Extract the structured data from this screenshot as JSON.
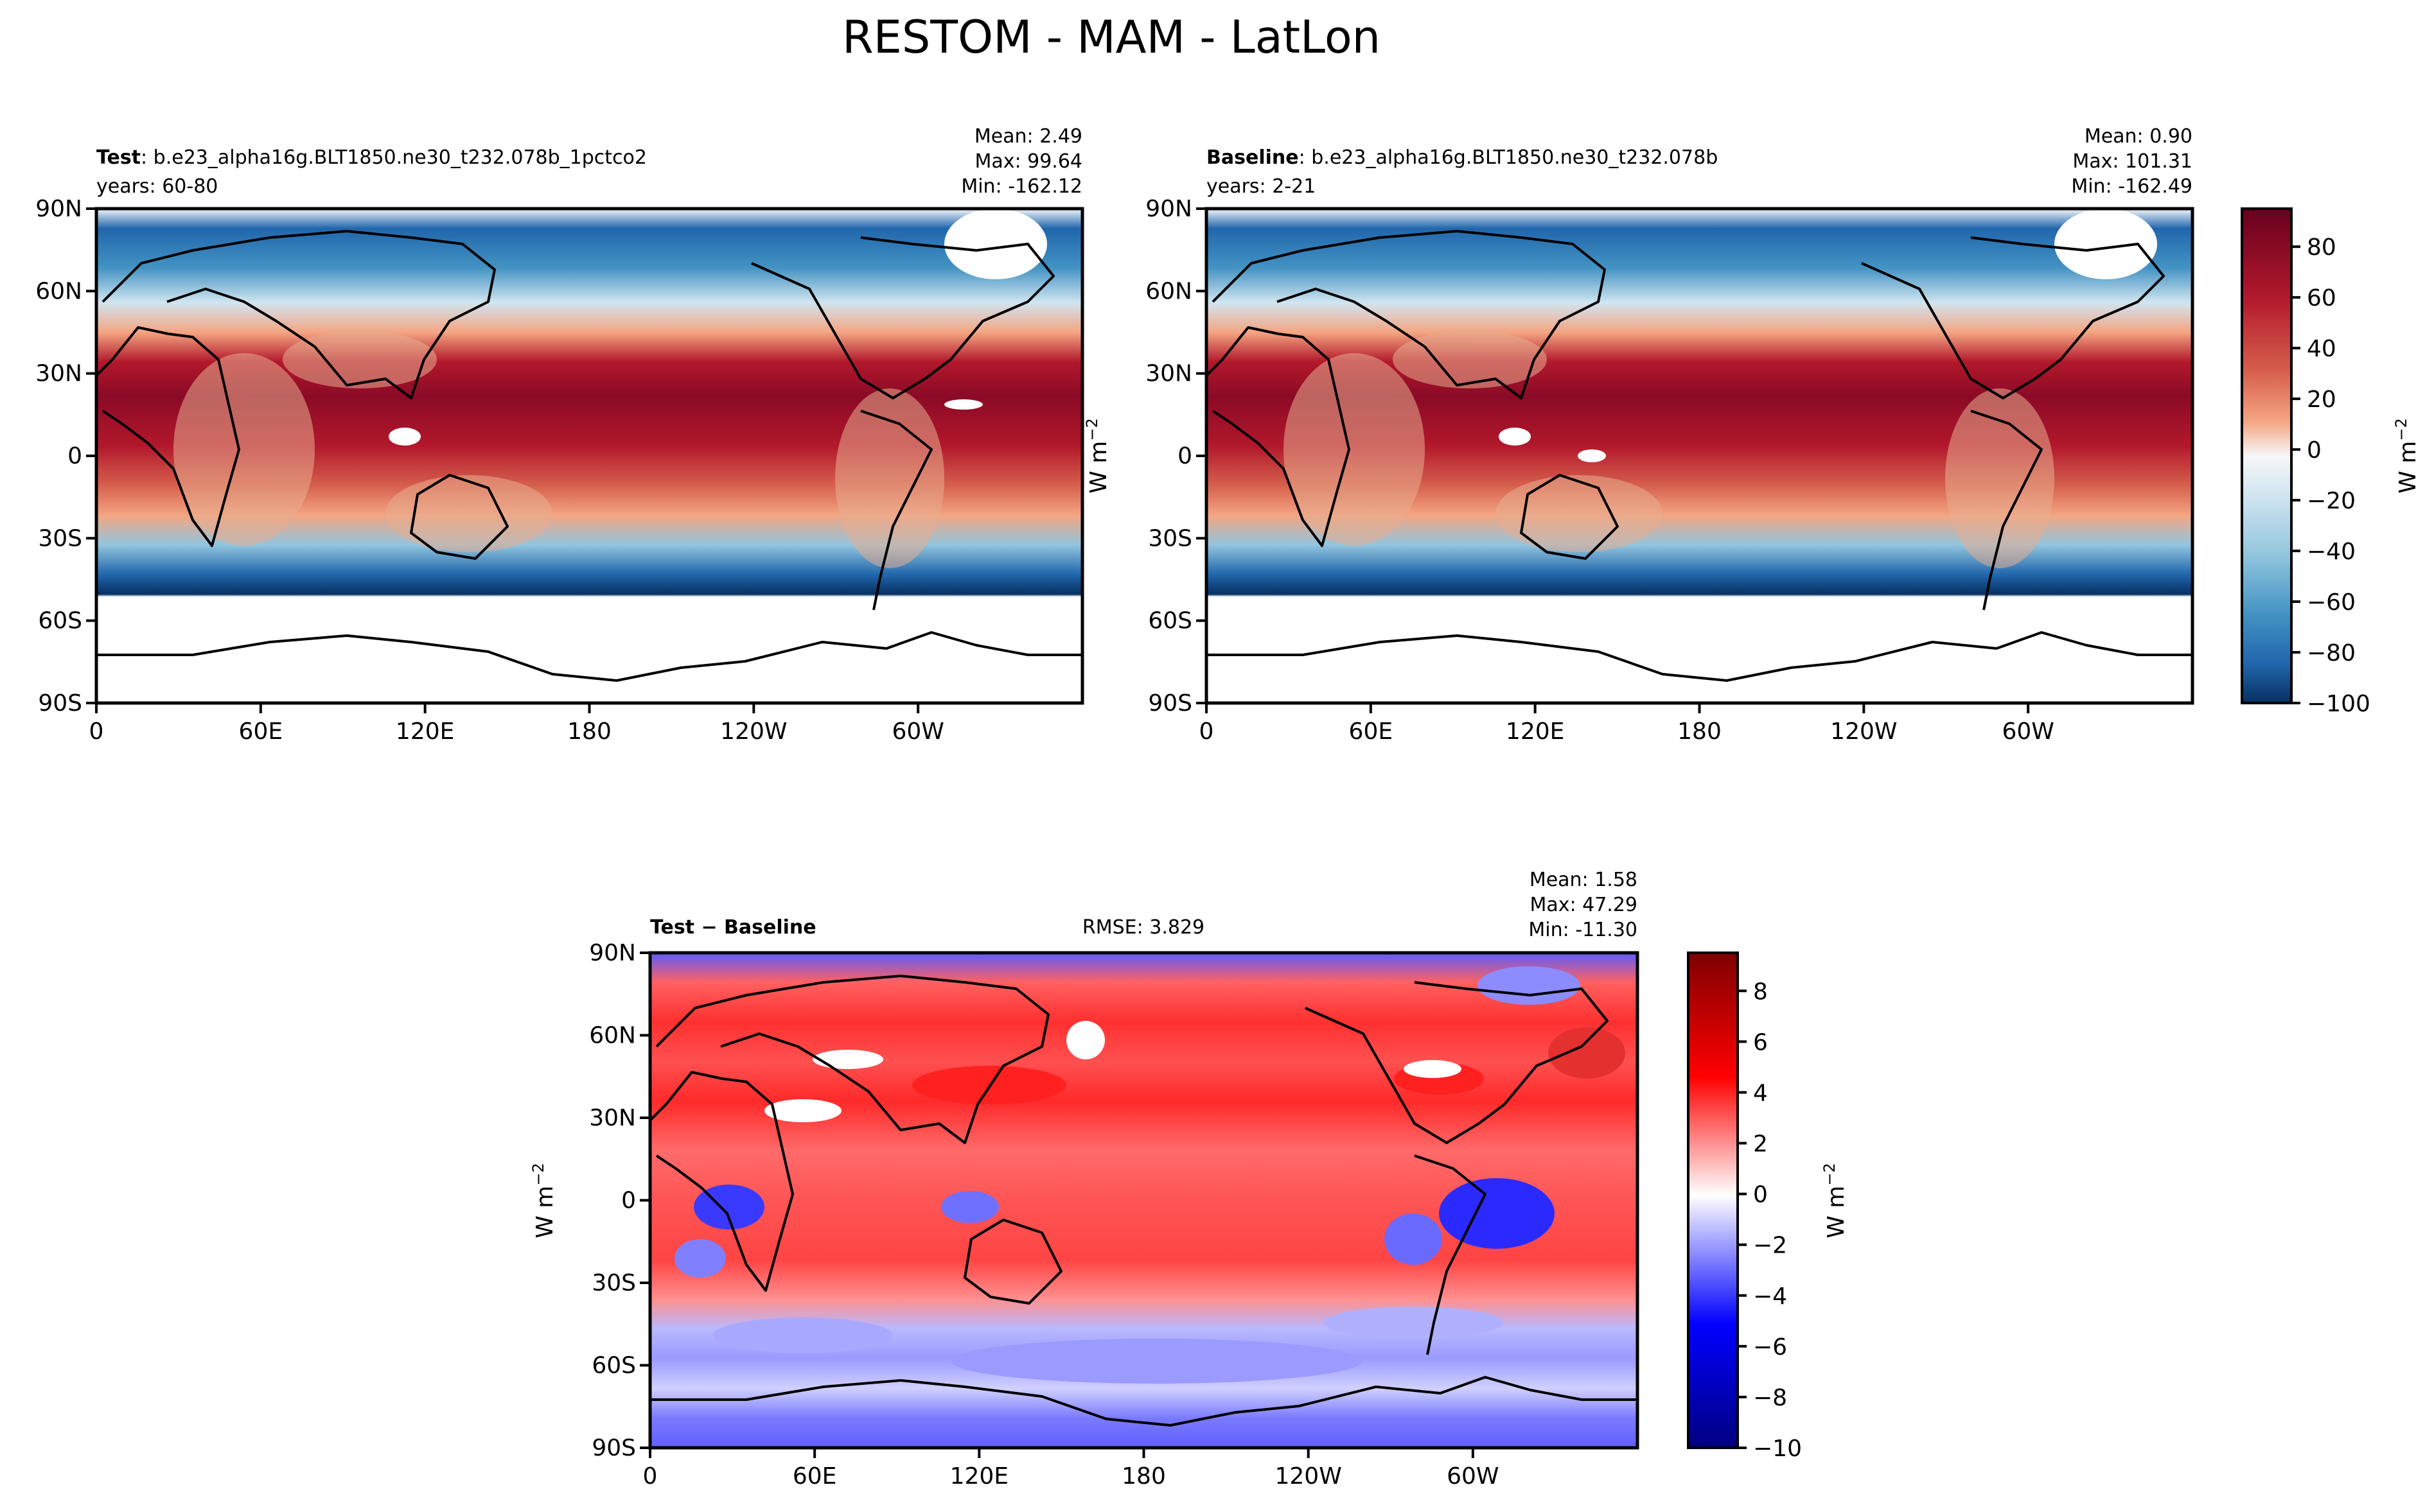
{
  "figure": {
    "title": "RESTOM - MAM - LatLon"
  },
  "panels": {
    "test": {
      "label_bold": "Test",
      "label_rest": ": b.e23_alpha16g.BLT1850.ne30_t232.078b_1pctco2",
      "years": "years: 60-80",
      "mean": "Mean:  2.49",
      "max": "Max: 99.64",
      "min": "Min: -162.12"
    },
    "baseline": {
      "label_bold": "Baseline",
      "label_rest": ": b.e23_alpha16g.BLT1850.ne30_t232.078b",
      "years": "years: 2-21",
      "mean": "Mean:  0.90",
      "max": "Max: 101.31",
      "min": "Min: -162.49"
    },
    "diff": {
      "label_bold": "Test − Baseline",
      "rmse": "RMSE: 3.829",
      "mean": "Mean:  1.58",
      "max": "Max: 47.29",
      "min": "Min: -11.30"
    }
  },
  "chart_data": [
    {
      "type": "heatmap",
      "name": "Test",
      "projection": "PlateCarree (central_longitude=180)",
      "xlim": [
        0,
        360
      ],
      "ylim": [
        -90,
        90
      ],
      "xticks": [
        "0",
        "60E",
        "120E",
        "180",
        "120W",
        "60W"
      ],
      "yticks": [
        "90N",
        "60N",
        "30N",
        "0",
        "30S",
        "60S",
        "90S"
      ],
      "colormap": "RdBu_r",
      "zlim": [
        -100,
        95
      ],
      "mean": 2.49,
      "max": 99.64,
      "min": -162.12
    },
    {
      "type": "heatmap",
      "name": "Baseline",
      "projection": "PlateCarree (central_longitude=180)",
      "xlim": [
        0,
        360
      ],
      "ylim": [
        -90,
        90
      ],
      "xticks": [
        "0",
        "60E",
        "120E",
        "180",
        "120W",
        "60W"
      ],
      "yticks": [
        "90N",
        "60N",
        "30N",
        "0",
        "30S",
        "60S",
        "90S"
      ],
      "colormap": "RdBu_r",
      "zlim": [
        -100,
        95
      ],
      "mean": 0.9,
      "max": 101.31,
      "min": -162.49
    },
    {
      "type": "heatmap",
      "name": "Test − Baseline",
      "projection": "PlateCarree (central_longitude=180)",
      "xlim": [
        0,
        360
      ],
      "ylim": [
        -90,
        90
      ],
      "xticks": [
        "0",
        "60E",
        "120E",
        "180",
        "120W",
        "60W"
      ],
      "yticks": [
        "90N",
        "60N",
        "30N",
        "0",
        "30S",
        "60S",
        "90S"
      ],
      "colormap": "bwr",
      "zlim": [
        -10,
        9.5
      ],
      "mean": 1.58,
      "max": 47.29,
      "min": -11.3,
      "rmse": 3.829
    }
  ],
  "colorbars": {
    "top": {
      "ticks": [
        "80",
        "60",
        "40",
        "20",
        "0",
        "−20",
        "−40",
        "−60",
        "−80",
        "−100"
      ],
      "values": [
        80,
        60,
        40,
        20,
        0,
        -20,
        -40,
        -60,
        -80,
        -100
      ],
      "range": [
        -100,
        95
      ],
      "label": "W m",
      "label_sup": "−2"
    },
    "bottom": {
      "ticks": [
        "8",
        "6",
        "4",
        "2",
        "0",
        "−2",
        "−4",
        "−6",
        "−8",
        "−10"
      ],
      "values": [
        8,
        6,
        4,
        2,
        0,
        -2,
        -4,
        -6,
        -8,
        -10
      ],
      "range": [
        -10,
        9.5
      ],
      "label": "W m",
      "label_sup": "−2"
    }
  },
  "side_labels": {
    "unit": "W m",
    "unit_sup": "−2"
  },
  "colors": {
    "dark_red": "#67001f",
    "red": "#d6604d",
    "white": "#f7f7f7",
    "blue": "#4393c3",
    "dark_blue": "#053061",
    "bwr_red": "#ff0000",
    "bwr_blue": "#0000ff"
  }
}
